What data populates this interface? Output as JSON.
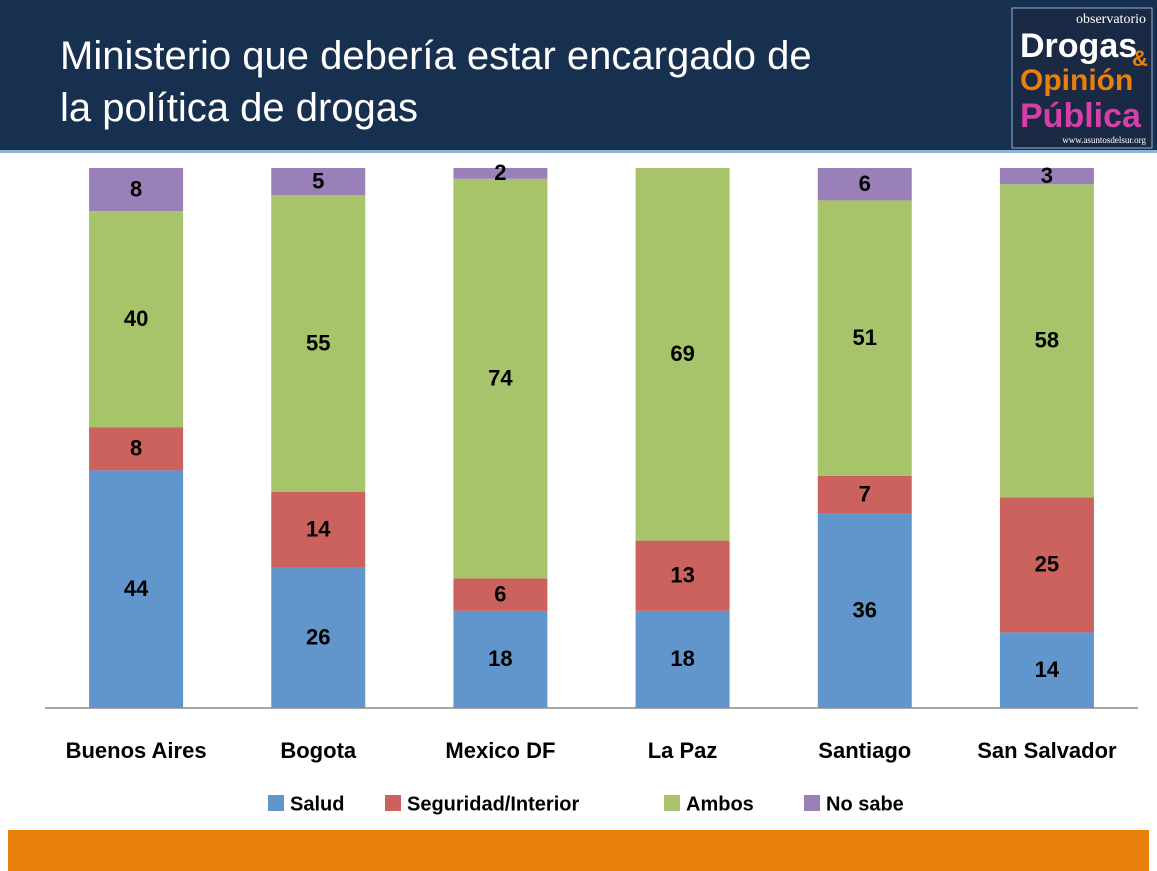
{
  "chart_data": {
    "type": "stacked_bar",
    "title": "Ministerio que debería estar encargado de\nla política de drogas",
    "categories": [
      "Buenos Aires",
      "Bogota",
      "Mexico DF",
      "La Paz",
      "Santiago",
      "San Salvador"
    ],
    "series": [
      {
        "name": "Salud",
        "color": "#6196cc",
        "values": [
          44,
          26,
          18,
          18,
          36,
          14
        ]
      },
      {
        "name": "Seguridad/Interior",
        "color": "#cc625e",
        "values": [
          8,
          14,
          6,
          13,
          7,
          25
        ]
      },
      {
        "name": "Ambos",
        "color": "#a8c46a",
        "values": [
          40,
          55,
          74,
          69,
          51,
          58
        ]
      },
      {
        "name": "No sabe",
        "color": "#9a80b8",
        "values": [
          8,
          5,
          2,
          null,
          6,
          3
        ]
      }
    ],
    "ylim": [
      0,
      100
    ],
    "legend": "bottom"
  },
  "logo": {
    "top": "observatorio",
    "line1": "Drogas",
    "amp": "&",
    "line2": "Opinión",
    "line3": "Pública",
    "url": "www.asuntosdelsur.org"
  }
}
